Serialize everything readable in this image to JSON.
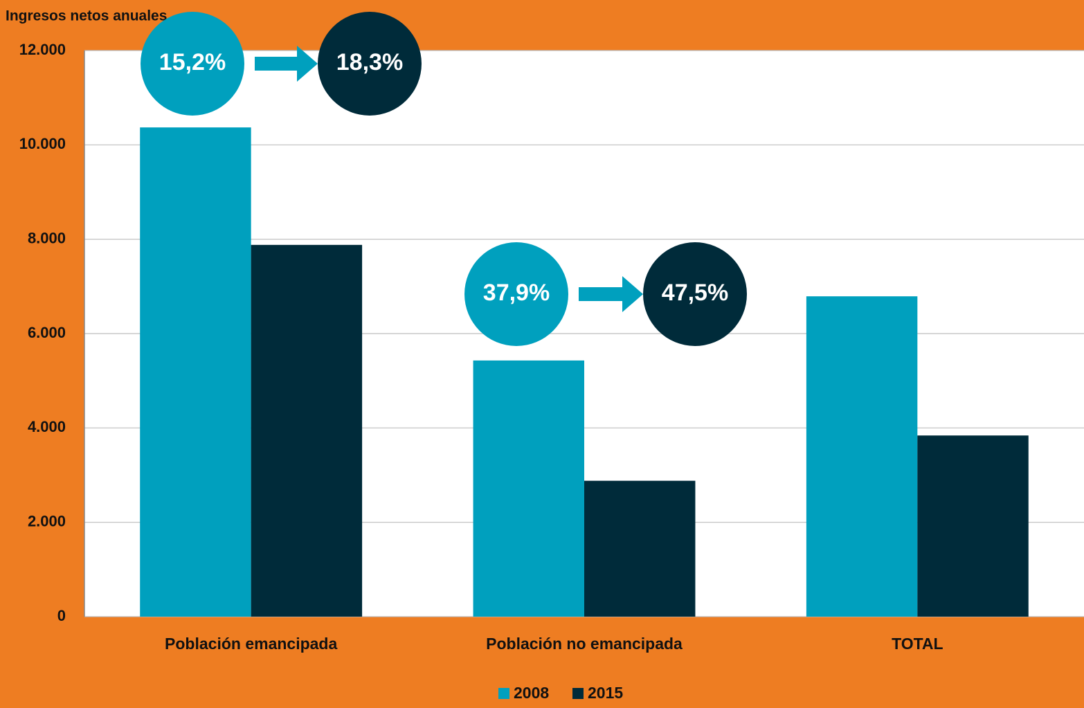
{
  "chart_data": {
    "type": "bar",
    "title": "Ingresos netos anuales",
    "categories": [
      "Población emancipada",
      "Población no emancipada",
      "TOTAL"
    ],
    "series": [
      {
        "name": "2008",
        "color": "#00a0be",
        "values": [
          10370,
          5430,
          6790
        ]
      },
      {
        "name": "2015",
        "color": "#002b3a",
        "values": [
          7880,
          2880,
          3840
        ]
      }
    ],
    "ylim": [
      0,
      12000
    ],
    "yticks": [
      0,
      {
        "value": 2000,
        "label": "2.000"
      },
      {
        "value": 4000,
        "label": "4.000"
      },
      {
        "value": 6000,
        "label": "6.000"
      },
      {
        "value": 8000,
        "label": "8.000"
      },
      {
        "value": 10000,
        "label": "10.000"
      },
      {
        "value": 12000,
        "label": "12.000"
      }
    ],
    "grid": true,
    "legend": "bottom",
    "annotations": [
      {
        "from": "15,2%",
        "to": "18,3%"
      },
      {
        "from": "37,9%",
        "to": "47,5%"
      }
    ]
  }
}
